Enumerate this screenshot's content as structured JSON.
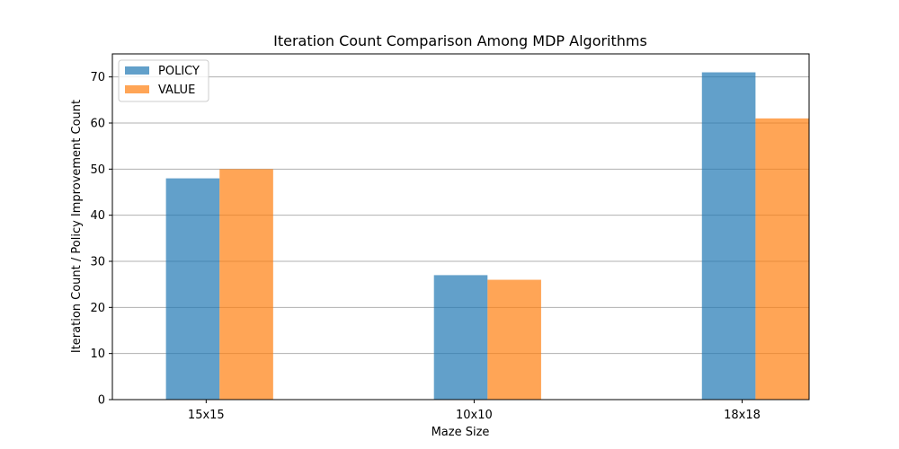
{
  "chart_data": {
    "type": "bar",
    "title": "Iteration Count Comparison Among MDP Algorithms",
    "xlabel": "Maze Size",
    "ylabel": "Iteration Count / Policy Improvement Count",
    "categories": [
      "15x15",
      "10x10",
      "18x18"
    ],
    "series": [
      {
        "name": "POLICY",
        "values": [
          48,
          27,
          71
        ],
        "color": "#1f77b4"
      },
      {
        "name": "VALUE",
        "values": [
          50,
          26,
          61
        ],
        "color": "#ff7f0e"
      }
    ],
    "ylim": [
      0,
      75
    ],
    "yticks": [
      0,
      10,
      20,
      30,
      40,
      50,
      60,
      70
    ],
    "grid": "y",
    "legend_position": "top-left"
  }
}
